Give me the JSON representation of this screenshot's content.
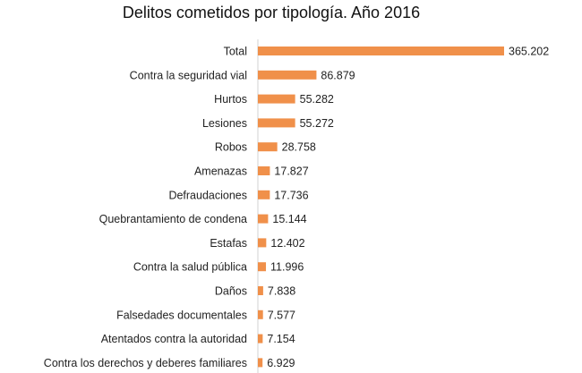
{
  "chart_data": {
    "type": "bar",
    "orientation": "horizontal",
    "title": "Delitos cometidos por tipología. Año 2016",
    "xlabel": "",
    "ylabel": "",
    "grid": false,
    "legend": "none",
    "bar_color": "#F0904A",
    "categories": [
      "Total",
      "Contra la seguridad vial",
      "Hurtos",
      "Lesiones",
      "Robos",
      "Amenazas",
      "Defraudaciones",
      "Quebrantamiento de condena",
      "Estafas",
      "Contra la salud pública",
      "Daños",
      "Falsedades documentales",
      "Atentados contra la autoridad",
      "Contra los derechos y deberes familiares"
    ],
    "values": [
      365202,
      86879,
      55282,
      55272,
      28758,
      17827,
      17736,
      15144,
      12402,
      11996,
      7838,
      7577,
      7154,
      6929
    ],
    "value_labels": [
      "365.202",
      "86.879",
      "55.282",
      "55.272",
      "28.758",
      "17.827",
      "17.736",
      "15.144",
      "12.402",
      "11.996",
      "7.838",
      "7.577",
      "7.154",
      "6.929"
    ]
  }
}
